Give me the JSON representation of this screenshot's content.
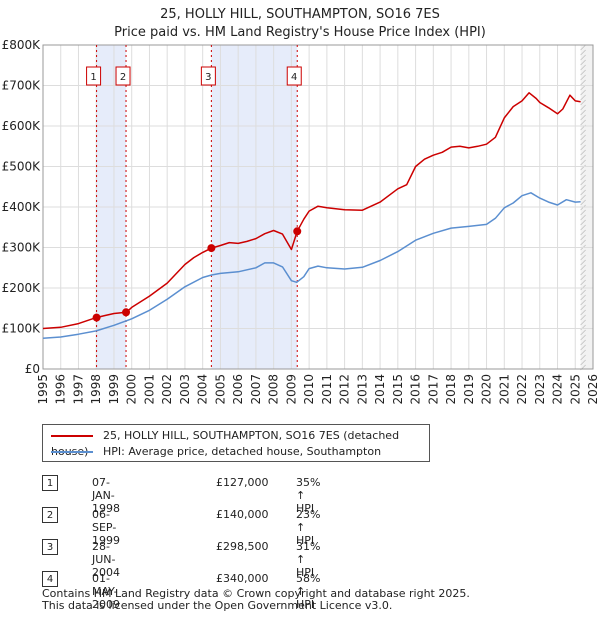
{
  "chart_data": {
    "type": "line",
    "title": "25, HOLLY HILL, SOUTHAMPTON, SO16 7ES",
    "subtitle": "Price paid vs. HM Land Registry's House Price Index (HPI)",
    "xlabel": "",
    "ylabel": "",
    "xlim": [
      1995,
      2026
    ],
    "ylim": [
      0,
      800000
    ],
    "x_ticks": [
      "1995",
      "1996",
      "1997",
      "1998",
      "1999",
      "2000",
      "2001",
      "2002",
      "2003",
      "2004",
      "2005",
      "2006",
      "2007",
      "2008",
      "2009",
      "2010",
      "2011",
      "2012",
      "2013",
      "2014",
      "2015",
      "2016",
      "2017",
      "2018",
      "2019",
      "2020",
      "2021",
      "2022",
      "2023",
      "2024",
      "2025",
      "2026"
    ],
    "y_ticks": [
      {
        "value": 0,
        "label": "£0"
      },
      {
        "value": 100000,
        "label": "£100K"
      },
      {
        "value": 200000,
        "label": "£200K"
      },
      {
        "value": 300000,
        "label": "£300K"
      },
      {
        "value": 400000,
        "label": "£400K"
      },
      {
        "value": 500000,
        "label": "£500K"
      },
      {
        "value": 600000,
        "label": "£600K"
      },
      {
        "value": 700000,
        "label": "£700K"
      },
      {
        "value": 800000,
        "label": "£800K"
      }
    ],
    "grid": true,
    "series": [
      {
        "name": "25, HOLLY HILL, SOUTHAMPTON, SO16 7ES (detached house)",
        "color": "#cc0000",
        "points": [
          [
            1995.0,
            100000
          ],
          [
            1996.0,
            103000
          ],
          [
            1997.0,
            112000
          ],
          [
            1998.0,
            127000
          ],
          [
            1998.5,
            132000
          ],
          [
            1999.0,
            137000
          ],
          [
            1999.7,
            140000
          ],
          [
            2000.0,
            152000
          ],
          [
            2001.0,
            180000
          ],
          [
            2002.0,
            212000
          ],
          [
            2003.0,
            258000
          ],
          [
            2003.5,
            275000
          ],
          [
            2004.0,
            288000
          ],
          [
            2004.5,
            298500
          ],
          [
            2005.0,
            305000
          ],
          [
            2005.5,
            312000
          ],
          [
            2006.0,
            310000
          ],
          [
            2006.5,
            315000
          ],
          [
            2007.0,
            322000
          ],
          [
            2007.5,
            334000
          ],
          [
            2008.0,
            342000
          ],
          [
            2008.5,
            333000
          ],
          [
            2009.0,
            295000
          ],
          [
            2009.33,
            340000
          ],
          [
            2009.7,
            370000
          ],
          [
            2010.0,
            390000
          ],
          [
            2010.5,
            402000
          ],
          [
            2011.0,
            398000
          ],
          [
            2012.0,
            393000
          ],
          [
            2013.0,
            392000
          ],
          [
            2014.0,
            412000
          ],
          [
            2015.0,
            445000
          ],
          [
            2015.5,
            455000
          ],
          [
            2016.0,
            500000
          ],
          [
            2016.5,
            518000
          ],
          [
            2017.0,
            528000
          ],
          [
            2017.5,
            535000
          ],
          [
            2018.0,
            548000
          ],
          [
            2018.5,
            550000
          ],
          [
            2019.0,
            546000
          ],
          [
            2019.5,
            550000
          ],
          [
            2020.0,
            555000
          ],
          [
            2020.5,
            572000
          ],
          [
            2021.0,
            620000
          ],
          [
            2021.5,
            648000
          ],
          [
            2022.0,
            662000
          ],
          [
            2022.4,
            682000
          ],
          [
            2022.8,
            668000
          ],
          [
            2023.0,
            658000
          ],
          [
            2023.5,
            645000
          ],
          [
            2024.0,
            630000
          ],
          [
            2024.3,
            642000
          ],
          [
            2024.7,
            676000
          ],
          [
            2025.0,
            662000
          ],
          [
            2025.3,
            660000
          ]
        ]
      },
      {
        "name": "HPI: Average price, detached house, Southampton",
        "color": "#5b8fd0",
        "points": [
          [
            1995.0,
            76000
          ],
          [
            1996.0,
            79000
          ],
          [
            1997.0,
            86000
          ],
          [
            1998.0,
            94000
          ],
          [
            1999.0,
            108000
          ],
          [
            2000.0,
            124000
          ],
          [
            2001.0,
            145000
          ],
          [
            2002.0,
            172000
          ],
          [
            2003.0,
            203000
          ],
          [
            2004.0,
            226000
          ],
          [
            2004.5,
            232000
          ],
          [
            2005.0,
            236000
          ],
          [
            2006.0,
            240000
          ],
          [
            2007.0,
            250000
          ],
          [
            2007.5,
            262000
          ],
          [
            2008.0,
            262000
          ],
          [
            2008.5,
            252000
          ],
          [
            2009.0,
            218000
          ],
          [
            2009.3,
            214000
          ],
          [
            2009.7,
            228000
          ],
          [
            2010.0,
            248000
          ],
          [
            2010.5,
            254000
          ],
          [
            2011.0,
            250000
          ],
          [
            2012.0,
            247000
          ],
          [
            2013.0,
            251000
          ],
          [
            2014.0,
            268000
          ],
          [
            2015.0,
            290000
          ],
          [
            2016.0,
            318000
          ],
          [
            2017.0,
            335000
          ],
          [
            2018.0,
            348000
          ],
          [
            2019.0,
            352000
          ],
          [
            2020.0,
            357000
          ],
          [
            2020.5,
            372000
          ],
          [
            2021.0,
            398000
          ],
          [
            2021.5,
            410000
          ],
          [
            2022.0,
            428000
          ],
          [
            2022.5,
            435000
          ],
          [
            2023.0,
            422000
          ],
          [
            2023.5,
            412000
          ],
          [
            2024.0,
            405000
          ],
          [
            2024.5,
            418000
          ],
          [
            2025.0,
            412000
          ],
          [
            2025.3,
            413000
          ]
        ]
      }
    ],
    "sales": [
      {
        "num": "1",
        "x": 1998.02,
        "price_value": 127000,
        "date": "07-JAN-1998",
        "price": "£127,000",
        "hpi": "35% ↑ HPI"
      },
      {
        "num": "2",
        "x": 1999.68,
        "price_value": 140000,
        "date": "06-SEP-1999",
        "price": "£140,000",
        "hpi": "23% ↑ HPI"
      },
      {
        "num": "3",
        "x": 2004.49,
        "price_value": 298500,
        "date": "28-JUN-2004",
        "price": "£298,500",
        "hpi": "31% ↑ HPI"
      },
      {
        "num": "4",
        "x": 2009.33,
        "price_value": 340000,
        "date": "01-MAY-2009",
        "price": "£340,000",
        "hpi": "58% ↑ HPI"
      }
    ],
    "shaded_periods": [
      [
        1998.02,
        1999.68
      ],
      [
        2004.49,
        2009.33
      ]
    ],
    "forecast_from": 2025.3
  },
  "legend": {
    "property_label": "25, HOLLY HILL, SOUTHAMPTON, SO16 7ES (detached house)",
    "hpi_label": "HPI: Average price, detached house, Southampton",
    "property_color": "#cc0000",
    "hpi_color": "#5b8fd0"
  },
  "footer": {
    "line1": "Contains HM Land Registry data © Crown copyright and database right 2025.",
    "line2": "This data is licensed under the Open Government Licence v3.0."
  }
}
